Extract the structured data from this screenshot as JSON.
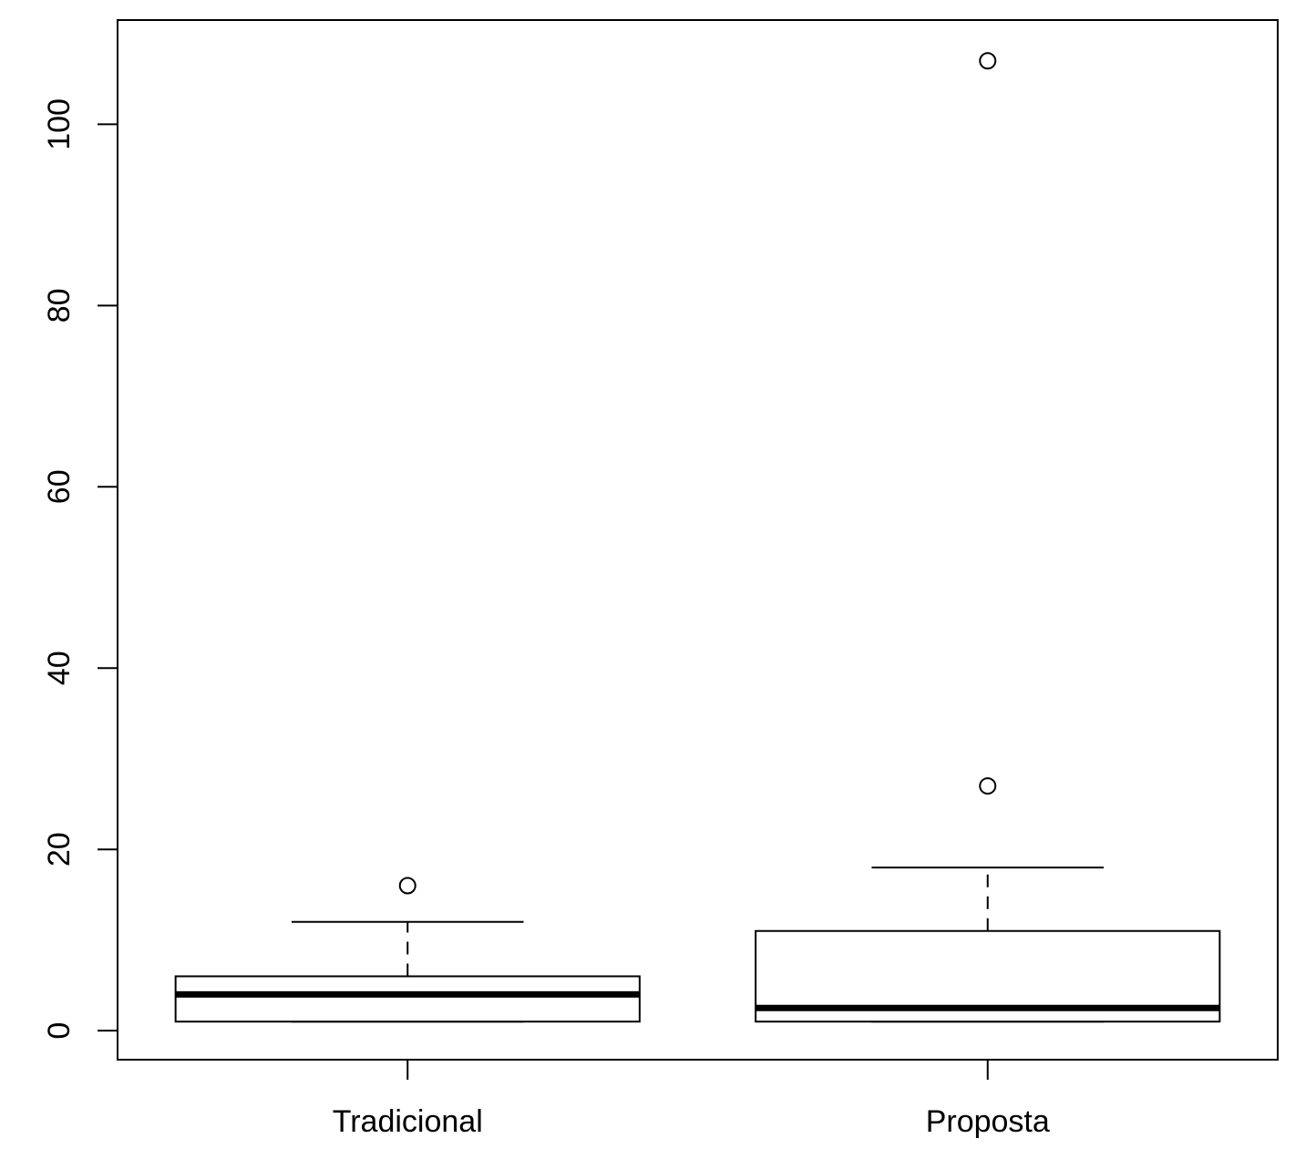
{
  "chart_data": {
    "type": "boxplot",
    "title": "",
    "xlabel": "",
    "ylabel": "",
    "ylim": [
      -3.2,
      111.5
    ],
    "yticks": [
      0,
      20,
      40,
      60,
      80,
      100
    ],
    "ytick_labels": [
      "0",
      "20",
      "40",
      "60",
      "80",
      "100"
    ],
    "grid": false,
    "legend": "none",
    "categories": [
      "Tradicional",
      "Proposta"
    ],
    "boxes": [
      {
        "whisker_low": 1,
        "q1": 1,
        "median": 4,
        "q3": 6,
        "whisker_high": 12,
        "outliers": [
          16
        ]
      },
      {
        "whisker_low": 1,
        "q1": 1,
        "median": 2.5,
        "q3": 11,
        "whisker_high": 18,
        "outliers": [
          27,
          107
        ]
      }
    ],
    "colors": {
      "line": "#000000",
      "box_fill": "#ffffff",
      "background": "#ffffff"
    }
  }
}
